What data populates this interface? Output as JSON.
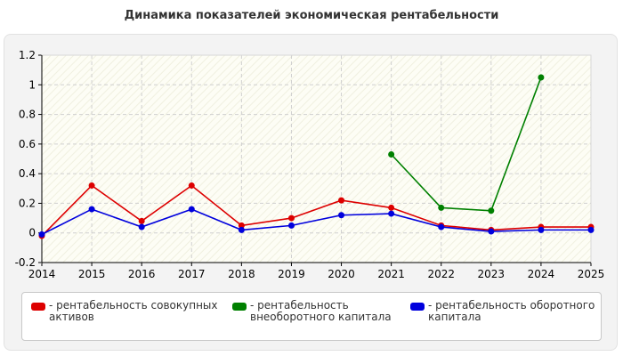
{
  "chart_data": {
    "type": "line",
    "title": "Динамика показателей экономическая рентабельности",
    "xlabel": "",
    "ylabel": "",
    "x": [
      "2014",
      "2015",
      "2016",
      "2017",
      "2018",
      "2019",
      "2020",
      "2021",
      "2022",
      "2023",
      "2024",
      "2025"
    ],
    "xlim": [
      2014,
      2025
    ],
    "ylim": [
      -0.2,
      1.2
    ],
    "yticks": [
      "-0.2",
      "0",
      "0.2",
      "0.4",
      "0.6",
      "0.8",
      "1",
      "1.2"
    ],
    "grid": true,
    "legend_position": "bottom",
    "series": [
      {
        "name": "- рентабельность совокупных активов",
        "color": "#dd0000",
        "values": [
          -0.02,
          0.32,
          0.08,
          0.32,
          0.05,
          0.1,
          0.22,
          0.17,
          0.05,
          0.02,
          0.04,
          0.04
        ]
      },
      {
        "name": "- рентабельность внеоборотного капитала",
        "color": "#008000",
        "values": [
          null,
          null,
          null,
          null,
          null,
          null,
          null,
          0.53,
          0.17,
          0.15,
          1.05,
          null
        ]
      },
      {
        "name": "- рентабельность оборотного капитала",
        "color": "#0000dd",
        "values": [
          -0.01,
          0.16,
          0.04,
          0.16,
          0.02,
          0.05,
          0.12,
          0.13,
          0.04,
          0.01,
          0.02,
          0.02
        ]
      }
    ]
  }
}
